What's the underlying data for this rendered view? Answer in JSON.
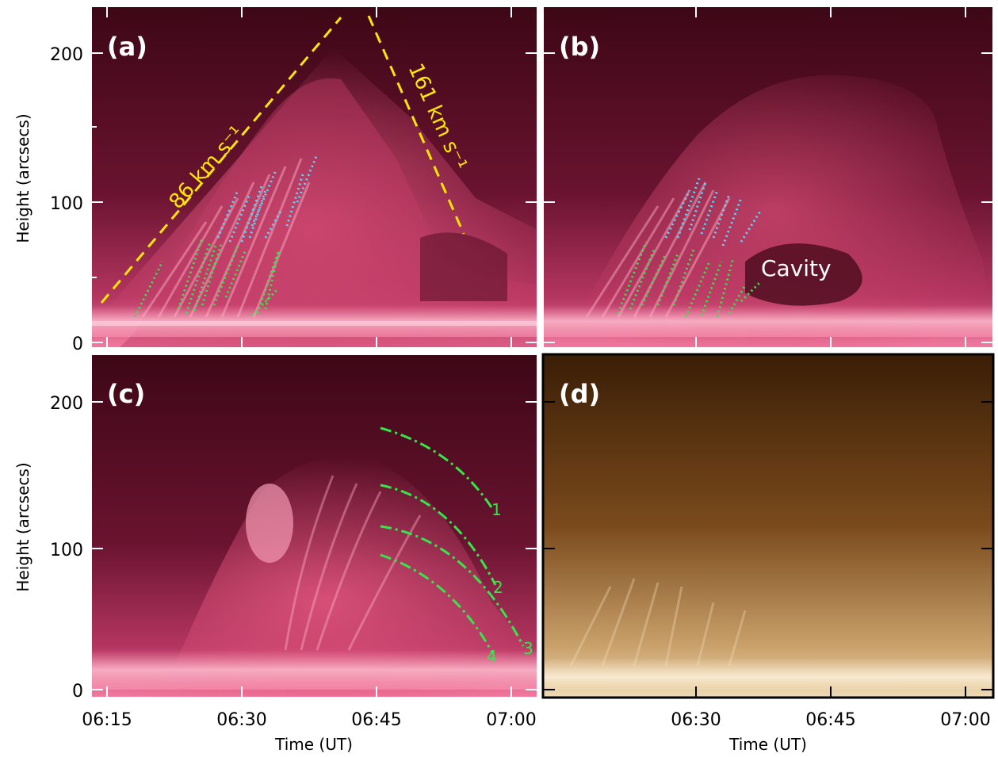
{
  "figure": {
    "panels": [
      {
        "id": "a",
        "label": "(a)",
        "background": "magenta-dark",
        "annotations": [
          "86 km s⁻¹",
          "161 km s⁻¹"
        ]
      },
      {
        "id": "b",
        "label": "(b)",
        "background": "magenta-dark",
        "annotations": [
          "Cavity"
        ]
      },
      {
        "id": "c",
        "label": "(c)",
        "background": "magenta-dark",
        "annotations": [
          "1",
          "2",
          "3",
          "4"
        ]
      },
      {
        "id": "d",
        "label": "(d)",
        "background": "brown"
      }
    ],
    "y_axis": {
      "label": "Height (arcsecs)",
      "ticks": [
        "0",
        "100",
        "200"
      ]
    },
    "x_axis_left": {
      "label": "Time (UT)",
      "ticks": [
        "06:15",
        "06:30",
        "06:45",
        "07:00"
      ]
    },
    "x_axis_right": {
      "label": "Time (UT)",
      "ticks": [
        "06:30",
        "06:45",
        "07:00"
      ]
    },
    "colors": {
      "panel_bg": "#5a0f24",
      "panel_glow": "#f26e95",
      "brown_bg": "#4a2608",
      "brown_glow": "#e8c89a",
      "yellow": "#ffe600",
      "cyan": "#5ad8ff",
      "green": "#35e64a"
    }
  }
}
